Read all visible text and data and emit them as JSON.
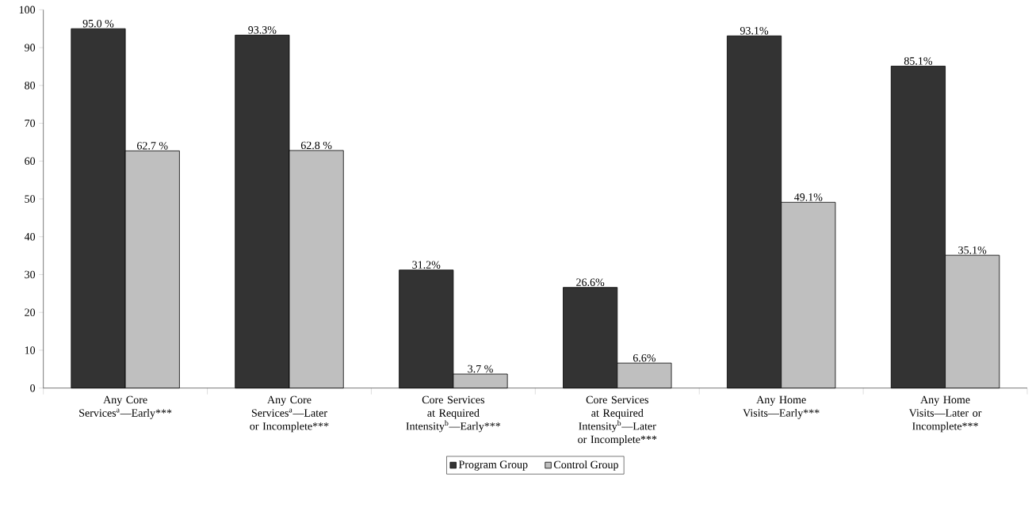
{
  "chart_data": {
    "type": "bar",
    "categories": [
      "Any Core Services$^{a}$—Early***",
      "Any Core Services$^{a}$—Later or Incomplete***",
      "Core Services at Required Intensity$^{b}$—Early***",
      "Core Services at Required Intensity$^{b}$—Later or Incomplete***",
      "Any Home Visits—Early***",
      "Any Home Visits—Later or Incomplete***"
    ],
    "series": [
      {
        "name": "Program Group",
        "color": "#333333",
        "values": [
          95.0,
          93.3,
          31.2,
          26.6,
          93.1,
          85.1
        ],
        "value_labels": [
          "95.0 %",
          "93.3%",
          "31.2%",
          "26.6%",
          "93.1%",
          "85.1%"
        ]
      },
      {
        "name": "Control Group",
        "color": "#bfbfbf",
        "values": [
          62.7,
          62.8,
          3.7,
          6.6,
          49.1,
          35.1
        ],
        "value_labels": [
          "62.7 %",
          "62.8 %",
          "3.7 %",
          "6.6%",
          "49.1%",
          "35.1%"
        ]
      }
    ],
    "ylim": [
      0,
      100
    ],
    "yticks": [
      0,
      10,
      20,
      30,
      40,
      50,
      60,
      70,
      80,
      90,
      100
    ],
    "legend": "bottom",
    "grid": false
  }
}
